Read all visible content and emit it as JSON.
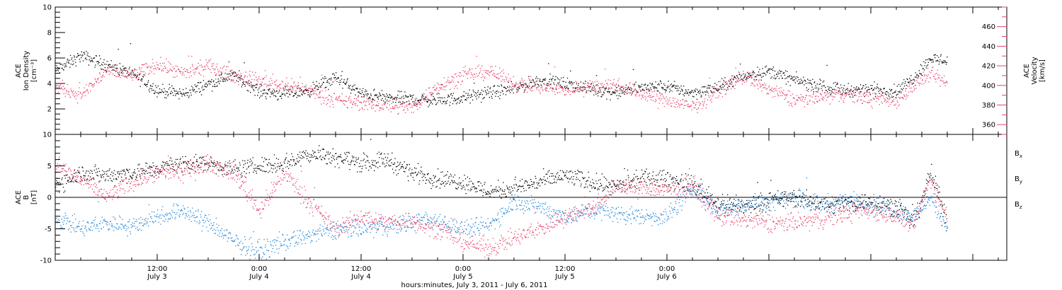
{
  "chart_data": [
    {
      "type": "scatter",
      "panel": "top",
      "left_axis": {
        "label_lines": [
          "ACE",
          "Ion Density",
          "[cm⁻³]"
        ],
        "ylim": [
          0,
          10
        ],
        "ticks": [
          2,
          4,
          6,
          8,
          10
        ],
        "color": "#000000"
      },
      "right_axis": {
        "label_lines": [
          "ACE",
          "Velocity",
          "[km/s]"
        ],
        "ylim": [
          350,
          480
        ],
        "ticks": [
          360,
          380,
          400,
          420,
          440,
          460
        ],
        "color": "#e8426c"
      },
      "x_range_hours": [
        0,
        112
      ],
      "series": [
        {
          "axis": "left",
          "color": "#000000",
          "x": [
            0,
            3,
            6,
            9,
            12,
            15,
            18,
            21,
            24,
            27,
            30,
            33,
            36,
            39,
            42,
            45,
            48,
            51,
            54,
            57,
            60,
            63,
            66,
            69,
            72,
            75,
            78,
            81,
            84,
            87,
            90,
            93,
            96,
            99,
            101,
            103,
            105
          ],
          "y": [
            5.0,
            6.2,
            5.5,
            4.8,
            3.5,
            3.2,
            4.0,
            4.7,
            3.4,
            3.2,
            3.5,
            4.5,
            3.2,
            2.9,
            2.8,
            2.7,
            2.9,
            3.3,
            3.6,
            4.3,
            4.0,
            3.6,
            3.3,
            3.7,
            3.8,
            3.3,
            3.7,
            4.6,
            5.0,
            4.3,
            3.8,
            3.5,
            3.6,
            3.4,
            4.5,
            6.0,
            5.8
          ]
        },
        {
          "axis": "right",
          "color": "#e8426c",
          "x": [
            0,
            3,
            6,
            9,
            12,
            15,
            18,
            21,
            24,
            27,
            30,
            33,
            36,
            39,
            42,
            45,
            48,
            51,
            54,
            57,
            60,
            63,
            66,
            69,
            72,
            75,
            78,
            81,
            84,
            87,
            90,
            93,
            96,
            99,
            101,
            103,
            105
          ],
          "y": [
            400,
            390,
            415,
            410,
            422,
            412,
            420,
            410,
            405,
            400,
            395,
            385,
            382,
            380,
            378,
            400,
            410,
            415,
            402,
            398,
            396,
            400,
            401,
            392,
            385,
            378,
            395,
            410,
            396,
            386,
            388,
            392,
            386,
            385,
            400,
            412,
            402
          ]
        }
      ]
    },
    {
      "type": "scatter",
      "panel": "bottom",
      "left_axis": {
        "label_lines": [
          "ACE",
          "B",
          "[nT]"
        ],
        "ylim": [
          -10,
          10
        ],
        "ticks": [
          -10,
          -5,
          0,
          5,
          10
        ],
        "color": "#000000"
      },
      "x_range_hours": [
        0,
        112
      ],
      "zero_line": true,
      "series": [
        {
          "name": "Bx",
          "color": "#000000",
          "x": [
            0,
            3,
            6,
            9,
            12,
            15,
            18,
            21,
            24,
            27,
            30,
            33,
            36,
            39,
            42,
            45,
            48,
            51,
            54,
            57,
            60,
            63,
            66,
            69,
            72,
            75,
            78,
            81,
            84,
            87,
            90,
            93,
            96,
            99,
            101,
            103,
            105
          ],
          "y": [
            2,
            4,
            3.5,
            4,
            4.5,
            5.5,
            5.5,
            4.5,
            5,
            5.5,
            7,
            6.5,
            5.5,
            6,
            4,
            3,
            2.5,
            1,
            1.5,
            2.5,
            3.5,
            2.5,
            1.5,
            3,
            3,
            2,
            -1,
            -1.5,
            -0.5,
            0,
            -1,
            -1,
            -0.5,
            -1.5,
            -4,
            4,
            -4
          ]
        },
        {
          "name": "By",
          "color": "#1f86d9",
          "x": [
            0,
            3,
            6,
            9,
            12,
            15,
            18,
            21,
            24,
            27,
            30,
            33,
            36,
            39,
            42,
            45,
            48,
            51,
            54,
            57,
            60,
            63,
            66,
            69,
            72,
            75,
            78,
            81,
            84,
            87,
            90,
            93,
            96,
            99,
            101,
            103,
            105
          ],
          "y": [
            -3,
            -5,
            -4,
            -4.5,
            -3,
            -2,
            -4,
            -7,
            -8.5,
            -7,
            -6,
            -5,
            -5,
            -4.5,
            -4,
            -3.5,
            -5,
            -4.5,
            -0.5,
            -1.5,
            -3,
            -2,
            -2.5,
            -3,
            -3,
            1.5,
            -2,
            -1,
            -0.5,
            0,
            -1,
            -0.5,
            -1,
            -2,
            -3,
            0,
            -5
          ]
        },
        {
          "name": "Bz",
          "color": "#e8426c",
          "x": [
            0,
            3,
            6,
            9,
            12,
            15,
            18,
            21,
            24,
            27,
            30,
            33,
            36,
            39,
            42,
            45,
            48,
            51,
            54,
            57,
            60,
            63,
            66,
            69,
            72,
            75,
            78,
            81,
            84,
            87,
            90,
            93,
            96,
            99,
            101,
            103,
            105
          ],
          "y": [
            5,
            3,
            0,
            2.5,
            4,
            4,
            5.5,
            4,
            -2,
            4,
            -1,
            -5,
            -3,
            -4,
            -3.5,
            -5,
            -7,
            -8,
            -6.5,
            -5,
            -3,
            -2,
            2,
            1.5,
            1,
            2,
            -3,
            -3.5,
            -4,
            -4,
            -3.5,
            -2.5,
            -2,
            -3,
            -4.5,
            3,
            -3
          ]
        }
      ],
      "legend": [
        {
          "label": "B",
          "sub": "x",
          "color": "#000000"
        },
        {
          "label": "B",
          "sub": "y",
          "color": "#1f86d9"
        },
        {
          "label": "B",
          "sub": "z",
          "color": "#e8426c"
        }
      ]
    }
  ],
  "x_axis": {
    "tick_hours": [
      0,
      12,
      24,
      36,
      48,
      60,
      72,
      84,
      96,
      108
    ],
    "labeled_ticks": [
      {
        "hour": 12,
        "time": "12:00",
        "date": "July 3"
      },
      {
        "hour": 24,
        "time": "0:00",
        "date": "July 4"
      },
      {
        "hour": 36,
        "time": "12:00",
        "date": "July 4"
      },
      {
        "hour": 48,
        "time": "0:00",
        "date": "July 5"
      },
      {
        "hour": 60,
        "time": "12:00",
        "date": "July 5"
      },
      {
        "hour": 72,
        "time": "0:00",
        "date": "July 6"
      }
    ],
    "title": "hours:minutes, July  3, 2011 - July  6, 2011"
  }
}
